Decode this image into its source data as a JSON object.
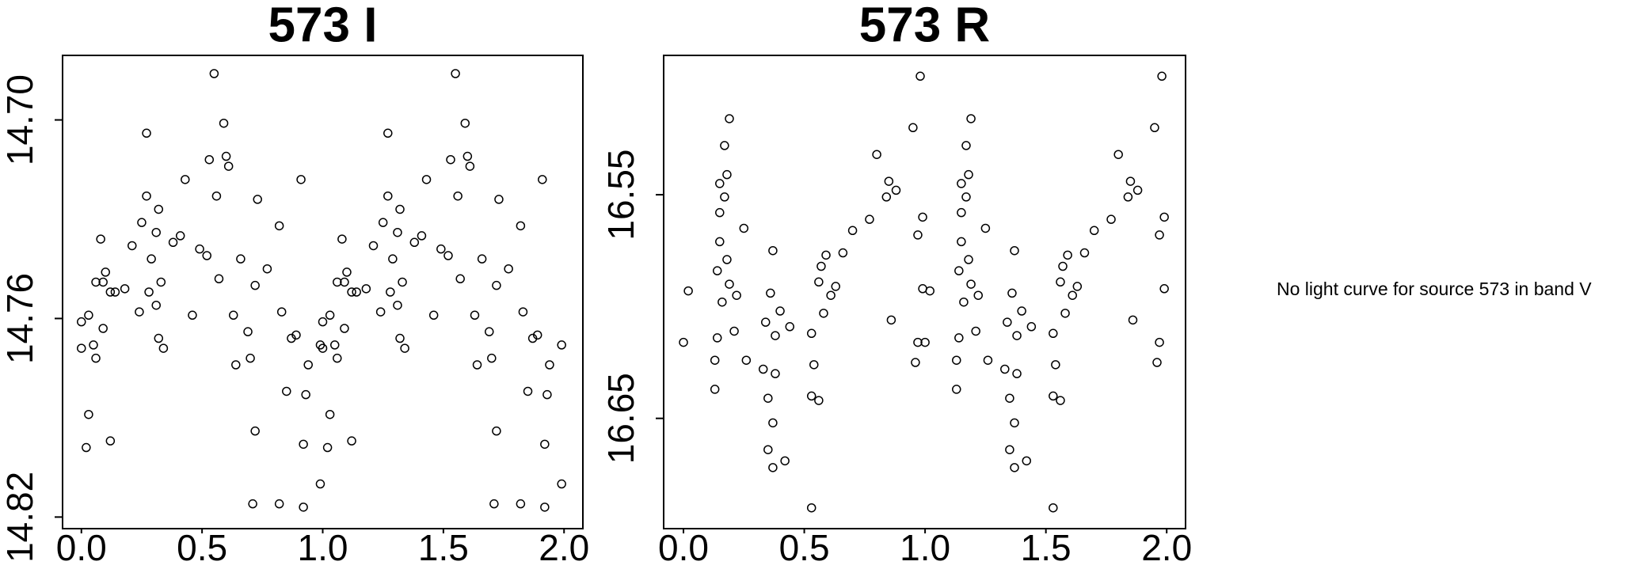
{
  "chart_data": [
    {
      "type": "scatter",
      "title": "573 I",
      "xlim": [
        -0.078,
        2.078
      ],
      "ylim": [
        14.8235,
        14.6805
      ],
      "xticks": [
        {
          "value": 0,
          "label": "0.0"
        },
        0.5,
        {
          "value": 1,
          "label": "1.0"
        },
        1.5,
        {
          "value": 2,
          "label": "2.0"
        }
      ],
      "yticks": [
        {
          "value": 14.7,
          "label": "14.70"
        },
        14.76,
        14.82
      ],
      "color": "#000000",
      "x": [
        0.0,
        0.0,
        0.02,
        0.03,
        0.03,
        0.05,
        0.06,
        0.06,
        0.08,
        0.09,
        0.09,
        0.1,
        0.12,
        0.12,
        0.14,
        0.18,
        0.21,
        0.24,
        0.25,
        0.27,
        0.27,
        0.28,
        0.29,
        0.31,
        0.31,
        0.32,
        0.32,
        0.33,
        0.34,
        0.38,
        0.41,
        0.43,
        0.46,
        0.49,
        0.52,
        0.53,
        0.55,
        0.56,
        0.57,
        0.59,
        0.6,
        0.61,
        0.63,
        0.64,
        0.66,
        0.69,
        0.7,
        0.71,
        0.72,
        0.72,
        0.73,
        0.77,
        0.82,
        0.82,
        0.83,
        0.85,
        0.87,
        0.89,
        0.91,
        0.92,
        0.92,
        0.93,
        0.94,
        0.99,
        0.99,
        1.0,
        1.0,
        1.02,
        1.03,
        1.03,
        1.05,
        1.06,
        1.06,
        1.08,
        1.09,
        1.09,
        1.1,
        1.12,
        1.12,
        1.14,
        1.18,
        1.21,
        1.24,
        1.25,
        1.27,
        1.27,
        1.28,
        1.29,
        1.31,
        1.31,
        1.32,
        1.32,
        1.33,
        1.34,
        1.38,
        1.41,
        1.43,
        1.46,
        1.49,
        1.52,
        1.53,
        1.55,
        1.56,
        1.57,
        1.59,
        1.6,
        1.61,
        1.63,
        1.64,
        1.66,
        1.69,
        1.7,
        1.71,
        1.72,
        1.72,
        1.73,
        1.77,
        1.82,
        1.82,
        1.83,
        1.85,
        1.87,
        1.89,
        1.91,
        1.92,
        1.92,
        1.93,
        1.94,
        1.99,
        1.99
      ],
      "values": [
        14.761,
        14.769,
        14.799,
        14.759,
        14.789,
        14.768,
        14.749,
        14.772,
        14.736,
        14.749,
        14.763,
        14.746,
        14.797,
        14.752,
        14.752,
        14.751,
        14.738,
        14.758,
        14.731,
        14.704,
        14.723,
        14.752,
        14.742,
        14.734,
        14.756,
        14.766,
        14.727,
        14.749,
        14.769,
        14.737,
        14.735,
        14.718,
        14.759,
        14.739,
        14.741,
        14.712,
        14.686,
        14.723,
        14.748,
        14.701,
        14.711,
        14.714,
        14.759,
        14.774,
        14.742,
        14.764,
        14.772,
        14.816,
        14.75,
        14.794,
        14.724,
        14.745,
        14.816,
        14.732,
        14.758,
        14.782,
        14.766,
        14.765,
        14.718,
        14.817,
        14.798,
        14.783,
        14.774,
        14.81,
        14.768,
        14.761,
        14.769,
        14.799,
        14.759,
        14.789,
        14.768,
        14.749,
        14.772,
        14.736,
        14.749,
        14.763,
        14.746,
        14.797,
        14.752,
        14.752,
        14.751,
        14.738,
        14.758,
        14.731,
        14.704,
        14.723,
        14.752,
        14.742,
        14.734,
        14.756,
        14.766,
        14.727,
        14.749,
        14.769,
        14.737,
        14.735,
        14.718,
        14.759,
        14.739,
        14.741,
        14.712,
        14.686,
        14.723,
        14.748,
        14.701,
        14.711,
        14.714,
        14.759,
        14.774,
        14.742,
        14.764,
        14.772,
        14.816,
        14.75,
        14.794,
        14.724,
        14.745,
        14.816,
        14.732,
        14.758,
        14.782,
        14.766,
        14.765,
        14.718,
        14.817,
        14.798,
        14.783,
        14.774,
        14.81,
        14.768
      ]
    },
    {
      "type": "scatter",
      "title": "573 R",
      "xlim": [
        -0.082,
        2.078
      ],
      "ylim": [
        16.6993,
        16.4877
      ],
      "xticks": [
        {
          "value": 0,
          "label": "0.0"
        },
        0.5,
        {
          "value": 1,
          "label": "1.0"
        },
        1.5,
        {
          "value": 2,
          "label": "2.0"
        }
      ],
      "yticks": [
        16.55,
        16.65
      ],
      "color": "#000000",
      "x": [
        0.0,
        0.02,
        0.13,
        0.13,
        0.14,
        0.14,
        0.15,
        0.15,
        0.15,
        0.16,
        0.17,
        0.17,
        0.18,
        0.18,
        0.19,
        0.19,
        0.21,
        0.22,
        0.25,
        0.26,
        0.33,
        0.34,
        0.35,
        0.35,
        0.36,
        0.37,
        0.37,
        0.37,
        0.38,
        0.38,
        0.4,
        0.42,
        0.44,
        0.53,
        0.53,
        0.53,
        0.54,
        0.56,
        0.56,
        0.57,
        0.58,
        0.59,
        0.61,
        0.63,
        0.66,
        0.7,
        0.77,
        0.8,
        0.84,
        0.85,
        0.86,
        0.88,
        0.95,
        0.96,
        0.97,
        0.97,
        0.98,
        0.99,
        0.99,
        1.0,
        1.02,
        1.13,
        1.13,
        1.14,
        1.14,
        1.15,
        1.15,
        1.15,
        1.16,
        1.17,
        1.17,
        1.18,
        1.18,
        1.19,
        1.19,
        1.21,
        1.22,
        1.25,
        1.26,
        1.33,
        1.34,
        1.35,
        1.35,
        1.36,
        1.37,
        1.37,
        1.37,
        1.38,
        1.38,
        1.4,
        1.42,
        1.44,
        1.53,
        1.53,
        1.53,
        1.54,
        1.56,
        1.56,
        1.57,
        1.58,
        1.59,
        1.61,
        1.63,
        1.66,
        1.7,
        1.77,
        1.8,
        1.84,
        1.85,
        1.86,
        1.88,
        1.95,
        1.96,
        1.97,
        1.97,
        1.98,
        1.99,
        1.99
      ],
      "values": [
        16.616,
        16.593,
        16.637,
        16.624,
        16.614,
        16.584,
        16.558,
        16.545,
        16.571,
        16.598,
        16.528,
        16.551,
        16.579,
        16.541,
        16.516,
        16.59,
        16.611,
        16.595,
        16.565,
        16.624,
        16.628,
        16.607,
        16.664,
        16.641,
        16.594,
        16.672,
        16.575,
        16.652,
        16.613,
        16.63,
        16.602,
        16.669,
        16.609,
        16.69,
        16.64,
        16.612,
        16.626,
        16.589,
        16.642,
        16.582,
        16.603,
        16.577,
        16.595,
        16.591,
        16.576,
        16.566,
        16.561,
        16.532,
        16.551,
        16.544,
        16.606,
        16.548,
        16.52,
        16.625,
        16.616,
        16.568,
        16.497,
        16.56,
        16.592,
        16.616,
        16.593,
        16.637,
        16.624,
        16.614,
        16.584,
        16.558,
        16.545,
        16.571,
        16.598,
        16.528,
        16.551,
        16.579,
        16.541,
        16.516,
        16.59,
        16.611,
        16.595,
        16.565,
        16.624,
        16.628,
        16.607,
        16.664,
        16.641,
        16.594,
        16.672,
        16.575,
        16.652,
        16.613,
        16.63,
        16.602,
        16.669,
        16.609,
        16.69,
        16.64,
        16.612,
        16.626,
        16.589,
        16.642,
        16.582,
        16.603,
        16.577,
        16.595,
        16.591,
        16.576,
        16.566,
        16.561,
        16.532,
        16.551,
        16.544,
        16.606,
        16.548,
        16.52,
        16.625,
        16.616,
        16.568,
        16.497,
        16.56,
        16.592
      ]
    }
  ],
  "note": "No light curve for source 573 in band V"
}
